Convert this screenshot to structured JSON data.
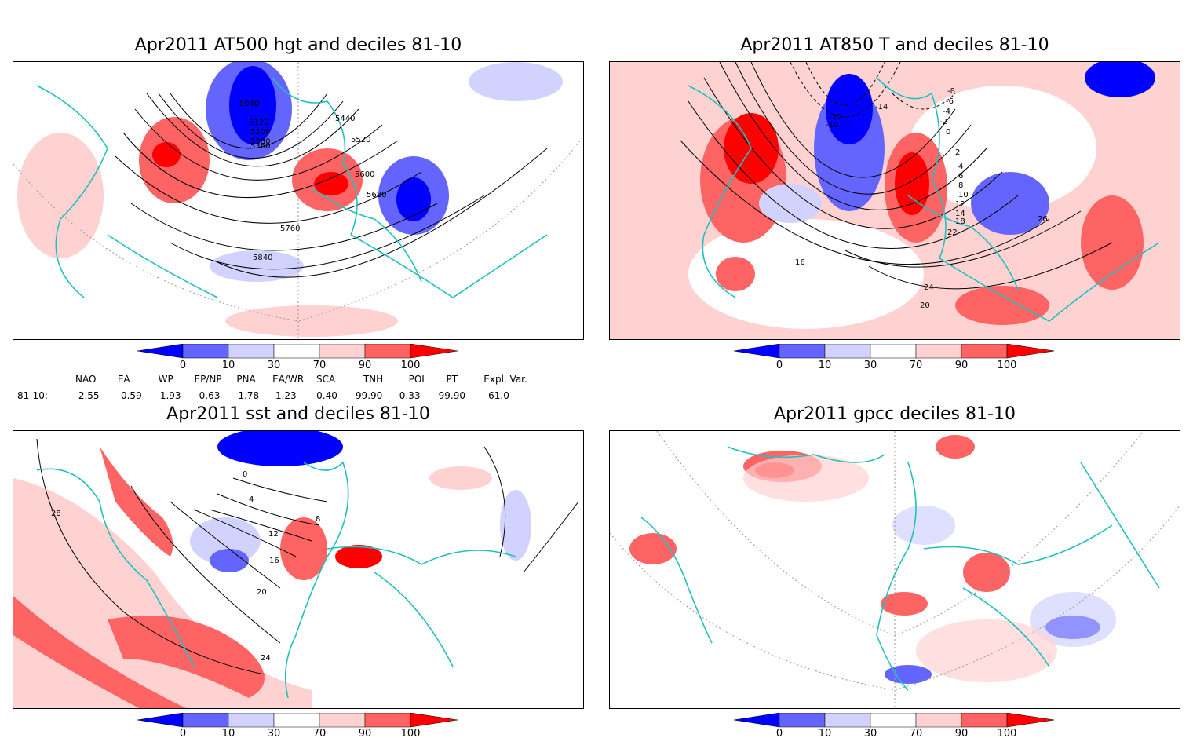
{
  "panels": [
    {
      "id": "tl",
      "title": "Apr2011 AT500 hgt and deciles 81-10",
      "contour_labels": [
        "5040",
        "5120",
        "5200",
        "5280",
        "5360",
        "5440",
        "5520",
        "5600",
        "5680",
        "5760",
        "5840"
      ]
    },
    {
      "id": "tr",
      "title": "Apr2011 AT850 T and deciles 81-10",
      "contour_labels": [
        "-14",
        "-12",
        "-10",
        "-8",
        "-6",
        "-4",
        "-2",
        "0",
        "2",
        "4",
        "6",
        "8",
        "10",
        "12",
        "14",
        "16",
        "18",
        "20",
        "22",
        "24",
        "26"
      ]
    },
    {
      "id": "bl",
      "title": "Apr2011 sst and deciles 81-10",
      "contour_labels": [
        "0",
        "4",
        "8",
        "12",
        "16",
        "20",
        "24",
        "28"
      ]
    },
    {
      "id": "br",
      "title": "Apr2011 gpcc deciles 81-10",
      "contour_labels": []
    }
  ],
  "colorbar": {
    "ticks": [
      "0",
      "10",
      "30",
      "70",
      "90",
      "100"
    ],
    "colors": [
      "#0000ff",
      "#6464ff",
      "#d2d2ff",
      "#ffffff",
      "#ffd2d2",
      "#ff6464",
      "#ff0000"
    ]
  },
  "indices": {
    "headers": [
      "NAO",
      "EA",
      "WP",
      "EP/NP",
      "PNA",
      "EA/WR",
      "SCA",
      "TNH",
      "POL",
      "PT",
      "Expl. Var."
    ],
    "row_label": "81-10:",
    "values": [
      "2.55",
      "-0.59",
      "-1.93",
      "-0.63",
      "-1.78",
      "1.23",
      "-0.40",
      "-99.90",
      "-0.33",
      "-99.90",
      "61.0"
    ]
  }
}
